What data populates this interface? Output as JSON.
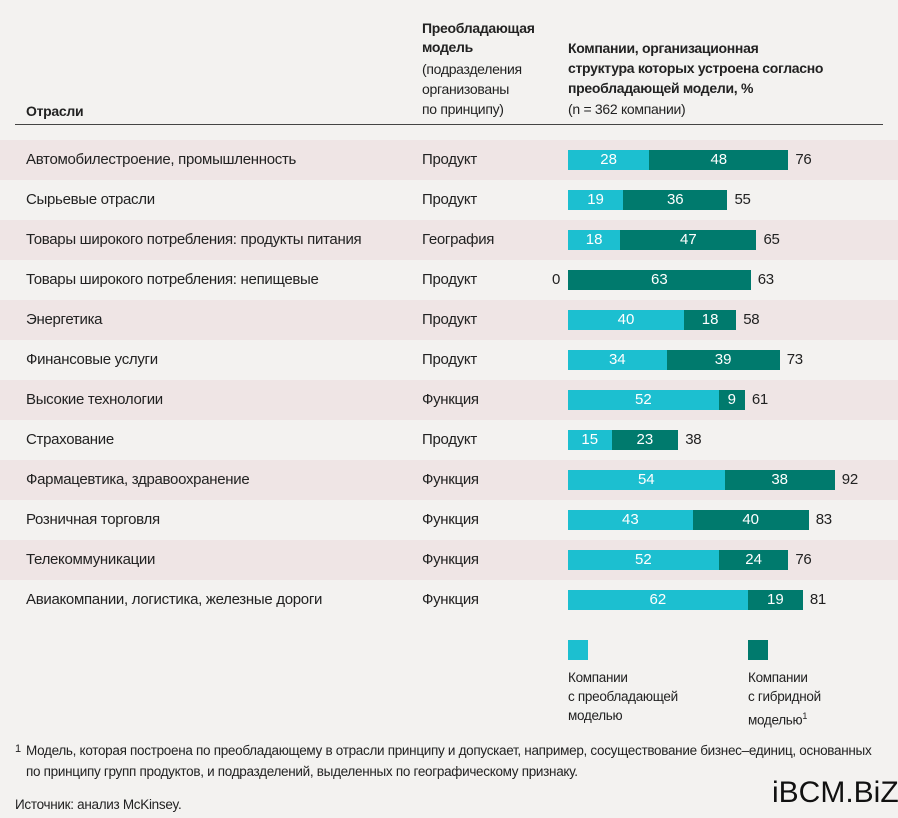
{
  "header": {
    "industry": "Отрасли",
    "model_title": [
      "Преобладающая",
      "модель"
    ],
    "model_note": [
      "(подразделения",
      "организованы",
      "по принципу)"
    ],
    "share_title": [
      "Компании, организационная",
      "структура которых устроена согласно",
      "преобладающей модели, %"
    ],
    "share_note": "(n = 362 компании)"
  },
  "rows": [
    {
      "industry": "Автомобилестроение, промышленность",
      "model": "Продукт",
      "dominant": 28,
      "hybrid": 48,
      "total": 76
    },
    {
      "industry": "Сырьевые отрасли",
      "model": "Продукт",
      "dominant": 19,
      "hybrid": 36,
      "total": 55
    },
    {
      "industry": "Товары широкого потребления: продукты питания",
      "model": "География",
      "dominant": 18,
      "hybrid": 47,
      "total": 65
    },
    {
      "industry": "Товары широкого потребления: непищевые",
      "model": "Продукт",
      "dominant": 0,
      "hybrid": 63,
      "total": 63
    },
    {
      "industry": "Энергетика",
      "model": "Продукт",
      "dominant": 40,
      "hybrid": 18,
      "total": 58
    },
    {
      "industry": "Финансовые услуги",
      "model": "Продукт",
      "dominant": 34,
      "hybrid": 39,
      "total": 73
    },
    {
      "industry": "Высокие технологии",
      "model": "Функция",
      "dominant": 52,
      "hybrid": 9,
      "total": 61
    },
    {
      "industry": "Страхование",
      "model": "Продукт",
      "dominant": 15,
      "hybrid": 23,
      "total": 38
    },
    {
      "industry": "Фармацевтика, здравоохранение",
      "model": "Функция",
      "dominant": 54,
      "hybrid": 38,
      "total": 92
    },
    {
      "industry": "Розничная торговля",
      "model": "Функция",
      "dominant": 43,
      "hybrid": 40,
      "total": 83
    },
    {
      "industry": "Телекоммуникации",
      "model": "Функция",
      "dominant": 52,
      "hybrid": 24,
      "total": 76
    },
    {
      "industry": "Авиакомпании, логистика, железные дороги",
      "model": "Функция",
      "dominant": 62,
      "hybrid": 19,
      "total": 81
    }
  ],
  "legend": [
    {
      "lines": [
        "Компании",
        "с преобладающей",
        "моделью"
      ],
      "color": "#1cbfd0"
    },
    {
      "lines": [
        "Компании",
        "с гибридной",
        "моделью"
      ],
      "sup": "1",
      "color": "#007a6d"
    }
  ],
  "footnote": {
    "mark": "1",
    "lines": [
      "Модель, которая построена по преобладающему в отрасли принципу и допускает, например, сосуществование бизнес–единиц, основанных",
      "по принципу групп продуктов, и подразделений, выделенных по географическому признаку."
    ]
  },
  "source": "Источник: анализ McKinsey.",
  "logo": "iBCM.BiZ"
}
